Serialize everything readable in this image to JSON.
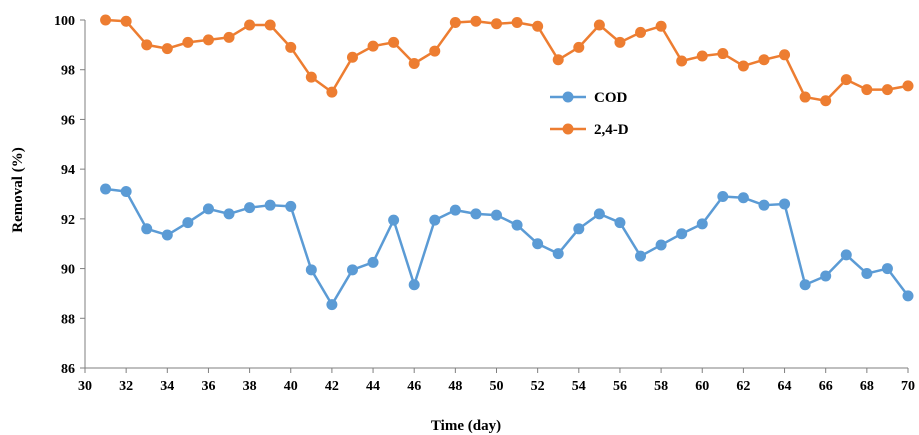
{
  "chart_data": {
    "type": "line",
    "title": "",
    "xlabel": "Time (day)",
    "ylabel": "Removal (%)",
    "xlim": [
      30,
      70
    ],
    "ylim": [
      86,
      100
    ],
    "xticks": [
      "30",
      "32",
      "34",
      "36",
      "38",
      "40",
      "42",
      "44",
      "46",
      "48",
      "50",
      "52",
      "54",
      "56",
      "58",
      "60",
      "62",
      "64",
      "66",
      "68",
      "70"
    ],
    "yticks": [
      "86",
      "88",
      "90",
      "92",
      "94",
      "96",
      "98",
      "100"
    ],
    "grid": false,
    "legend_position": "right-center",
    "x": [
      31,
      32,
      33,
      34,
      35,
      36,
      37,
      38,
      39,
      40,
      41,
      42,
      43,
      44,
      45,
      46,
      47,
      48,
      49,
      50,
      51,
      52,
      53,
      54,
      55,
      56,
      57,
      58,
      59,
      60,
      61,
      62,
      63,
      64,
      65,
      66,
      67,
      68,
      69,
      70
    ],
    "series": [
      {
        "name": "COD",
        "color": "#5b9bd5",
        "values": [
          93.2,
          93.1,
          91.6,
          91.35,
          91.85,
          92.4,
          92.2,
          92.45,
          92.55,
          92.5,
          89.95,
          88.55,
          89.95,
          90.25,
          91.95,
          89.35,
          91.95,
          92.35,
          92.2,
          92.15,
          91.75,
          91.0,
          90.6,
          91.6,
          92.2,
          91.85,
          90.5,
          90.95,
          91.4,
          91.8,
          92.9,
          92.85,
          92.55,
          92.6,
          89.35,
          89.7,
          90.55,
          89.8,
          90.0,
          88.9
        ]
      },
      {
        "name": "2,4-D",
        "color": "#ed7d31",
        "values": [
          100.0,
          99.95,
          99.0,
          98.85,
          99.1,
          99.2,
          99.3,
          99.8,
          99.8,
          98.9,
          97.7,
          97.1,
          98.5,
          98.95,
          99.1,
          98.25,
          98.75,
          99.9,
          99.95,
          99.85,
          99.9,
          99.75,
          98.4,
          98.9,
          99.8,
          99.1,
          99.5,
          99.75,
          98.35,
          98.55,
          98.65,
          98.15,
          98.4,
          98.6,
          96.9,
          96.75,
          97.6,
          97.2,
          97.2,
          97.35
        ]
      }
    ]
  }
}
